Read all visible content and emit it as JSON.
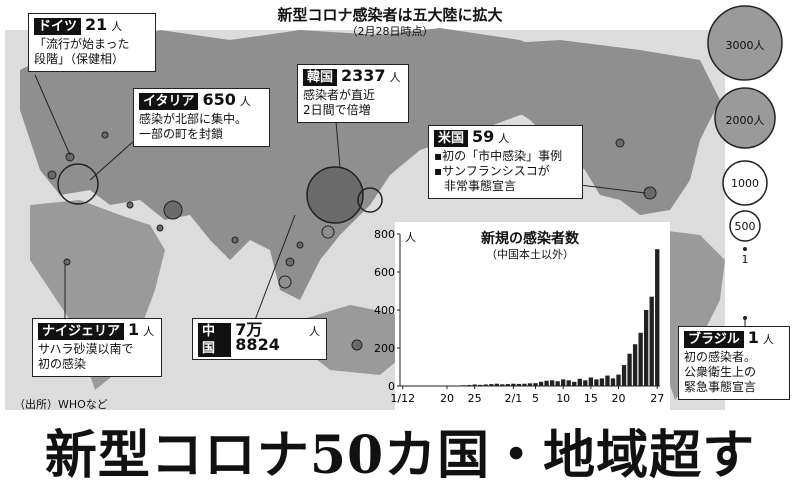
{
  "map": {
    "title": "新型コロナ感染者は五大陸に拡大",
    "subtitle": "（2月28日時点）"
  },
  "legend": [
    "3000人",
    "2000人",
    "1000",
    "500",
    "1"
  ],
  "callouts": {
    "germany": {
      "name": "ドイツ",
      "count": "21",
      "unit": "人",
      "lines": [
        "「流行が始まった",
        "段階」（保健相）"
      ]
    },
    "italy": {
      "name": "イタリア",
      "count": "650",
      "unit": "人",
      "lines": [
        "感染が北部に集中。",
        "一部の町を封鎖"
      ]
    },
    "korea": {
      "name": "韓国",
      "count": "2337",
      "unit": "人",
      "lines": [
        "感染者が直近",
        "2日間で倍増"
      ]
    },
    "us": {
      "name": "米国",
      "count": "59",
      "unit": "人",
      "lines": [
        "▪初の「市中感染」事例",
        "▪サンフランシスコが",
        "非常事態宣言"
      ]
    },
    "nigeria": {
      "name": "ナイジェリア",
      "count": "1",
      "unit": "人",
      "lines": [
        "サハラ砂漠以南で",
        "初の感染"
      ]
    },
    "china": {
      "name": "中国",
      "count": "7万8824",
      "unit": "人"
    },
    "brazil": {
      "name": "ブラジル",
      "count": "1",
      "unit": "人",
      "lines": [
        "初の感染者。",
        "公衆衛生上の",
        "緊急事態宣言"
      ]
    }
  },
  "source": "（出所）WHOなど",
  "headline": "新型コロナ50カ国・地域超す",
  "chart_data": {
    "type": "bar",
    "title": "新規の感染者数",
    "subtitle": "（中国本土以外）",
    "yunit": "人",
    "ylim": [
      0,
      800
    ],
    "yticks": [
      0,
      200,
      400,
      600,
      800
    ],
    "x_tick_labels": [
      "1/12",
      "20",
      "25",
      "2/1",
      "5",
      "10",
      "15",
      "20",
      "27"
    ],
    "x_tick_positions": [
      0,
      8,
      13,
      20,
      24,
      29,
      34,
      39,
      46
    ],
    "categories": [
      "1/12",
      "1/13",
      "1/14",
      "1/15",
      "1/16",
      "1/17",
      "1/18",
      "1/19",
      "1/20",
      "1/21",
      "1/22",
      "1/23",
      "1/24",
      "1/25",
      "1/26",
      "1/27",
      "1/28",
      "1/29",
      "1/30",
      "1/31",
      "2/1",
      "2/2",
      "2/3",
      "2/4",
      "2/5",
      "2/6",
      "2/7",
      "2/8",
      "2/9",
      "2/10",
      "2/11",
      "2/12",
      "2/13",
      "2/14",
      "2/15",
      "2/16",
      "2/17",
      "2/18",
      "2/19",
      "2/20",
      "2/21",
      "2/22",
      "2/23",
      "2/24",
      "2/25",
      "2/26",
      "2/27"
    ],
    "values": [
      0,
      0,
      0,
      0,
      0,
      0,
      0,
      0,
      0,
      2,
      2,
      4,
      5,
      8,
      6,
      8,
      10,
      12,
      9,
      10,
      12,
      11,
      12,
      14,
      15,
      22,
      28,
      30,
      25,
      35,
      30,
      22,
      38,
      30,
      45,
      35,
      40,
      55,
      40,
      60,
      110,
      170,
      220,
      280,
      400,
      470,
      720
    ]
  }
}
